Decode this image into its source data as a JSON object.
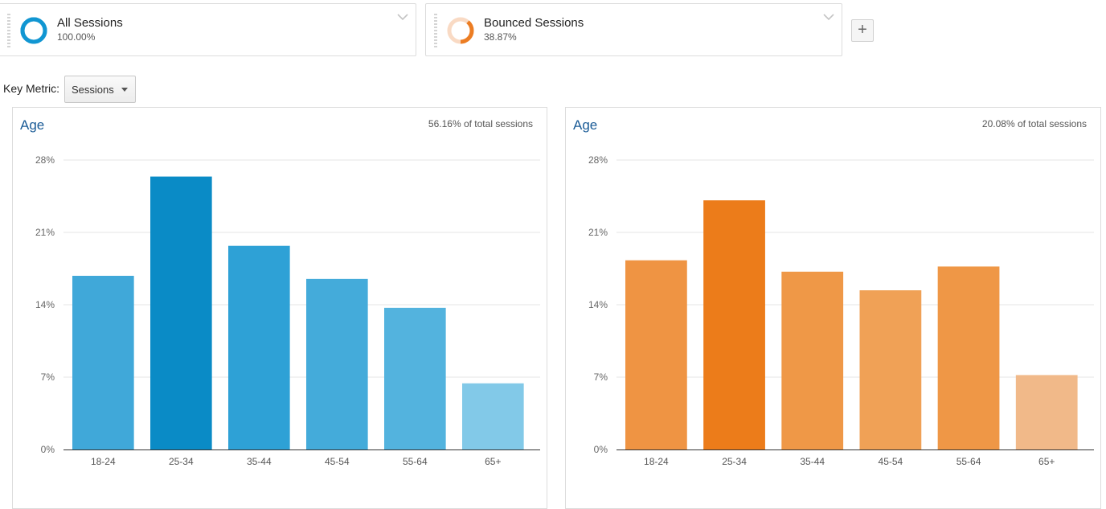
{
  "segments": [
    {
      "label": "All Sessions",
      "percent": "100.00%",
      "fraction": 1.0,
      "color": "#1196d2",
      "track_color": "#1196d2"
    },
    {
      "label": "Bounced Sessions",
      "percent": "38.87%",
      "fraction": 0.3887,
      "color": "#ec7d23",
      "track_color": "#f9dac4"
    }
  ],
  "toolbar": {
    "add_label": "+"
  },
  "key_metric": {
    "label": "Key Metric:",
    "selected": "Sessions"
  },
  "chart_data": [
    {
      "type": "bar",
      "title": "Age",
      "subtitle": "56.16% of total sessions",
      "categories": [
        "18-24",
        "25-34",
        "35-44",
        "45-54",
        "55-64",
        "65+"
      ],
      "values": [
        16.8,
        26.4,
        19.7,
        16.5,
        13.7,
        6.4
      ],
      "ylim": [
        0,
        28
      ],
      "yticks": [
        "0%",
        "7%",
        "14%",
        "21%",
        "28%"
      ],
      "ytick_values": [
        0,
        7,
        14,
        21,
        28
      ],
      "grid": true,
      "bar_colors": [
        "#40a8d9",
        "#0a8bc6",
        "#2ea1d6",
        "#44abda",
        "#53b3de",
        "#82c9e8"
      ]
    },
    {
      "type": "bar",
      "title": "Age",
      "subtitle": "20.08% of total sessions",
      "categories": [
        "18-24",
        "25-34",
        "35-44",
        "45-54",
        "55-64",
        "65+"
      ],
      "values": [
        18.3,
        24.1,
        17.2,
        15.4,
        17.7,
        7.2
      ],
      "ylim": [
        0,
        28
      ],
      "yticks": [
        "0%",
        "7%",
        "14%",
        "21%",
        "28%"
      ],
      "ytick_values": [
        0,
        7,
        14,
        21,
        28
      ],
      "grid": true,
      "bar_colors": [
        "#ef9443",
        "#ec7c1a",
        "#ef9847",
        "#f0a156",
        "#ef9746",
        "#f1b989"
      ]
    }
  ]
}
